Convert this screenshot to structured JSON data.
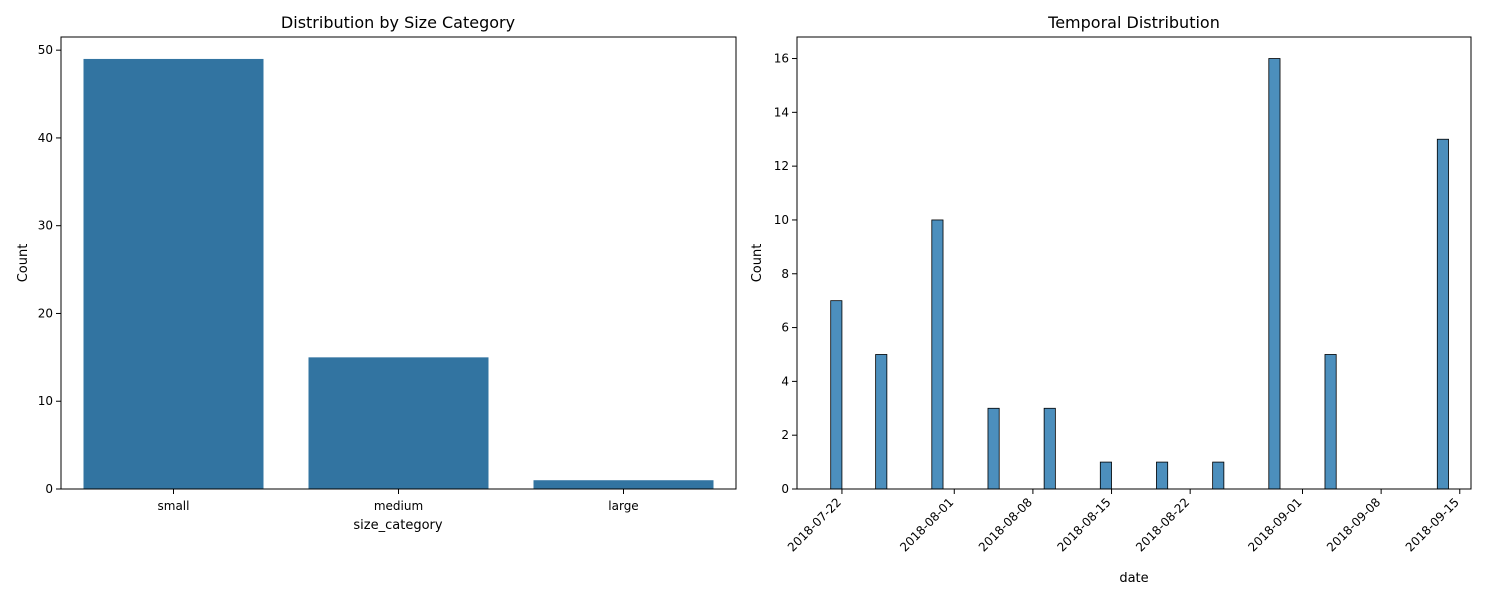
{
  "chart_data": [
    {
      "type": "bar",
      "title": "Distribution by Size Category",
      "xlabel": "size_category",
      "ylabel": "Count",
      "categories": [
        "small",
        "medium",
        "large"
      ],
      "values": [
        49,
        15,
        1
      ],
      "ylim": [
        0,
        51.5
      ],
      "yticks": [
        0,
        10,
        20,
        30,
        40,
        50
      ],
      "color": "#3274a1",
      "grid": false
    },
    {
      "type": "bar",
      "title": "Temporal Distribution",
      "xlabel": "date",
      "ylabel": "Count",
      "x": [
        "2018-07-21",
        "2018-07-25",
        "2018-07-30",
        "2018-08-04",
        "2018-08-09",
        "2018-08-14",
        "2018-08-19",
        "2018-08-24",
        "2018-08-29",
        "2018-09-03",
        "2018-09-13"
      ],
      "values": [
        7,
        5,
        10,
        3,
        3,
        1,
        1,
        1,
        16,
        5,
        13
      ],
      "xlim": [
        "2018-07-18",
        "2018-09-16"
      ],
      "xticks": [
        "2018-07-22",
        "2018-08-01",
        "2018-08-08",
        "2018-08-15",
        "2018-08-22",
        "2018-09-01",
        "2018-09-08",
        "2018-09-15"
      ],
      "ylim": [
        0,
        16.8
      ],
      "yticks": [
        0,
        2,
        4,
        6,
        8,
        10,
        12,
        14,
        16
      ],
      "color": "#4c8fbd",
      "edgecolor": "#000000",
      "grid": false
    }
  ]
}
